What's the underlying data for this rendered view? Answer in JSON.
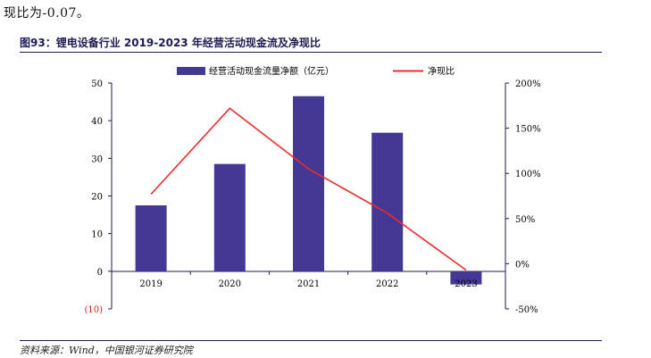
{
  "intro_text": "现比为-0.07。",
  "figure": {
    "title": "图93：锂电设备行业 2019-2023 年经营活动现金流及净现比",
    "source": "资料来源：Wind，中国银河证券研究院"
  },
  "colors": {
    "bar": "#433894",
    "line": "#ee2b2b",
    "axis": "#1c1c52",
    "title": "#1c1c52"
  },
  "chart_data": {
    "type": "bar",
    "categories": [
      "2019",
      "2020",
      "2021",
      "2022",
      "2023"
    ],
    "series": [
      {
        "name": "经营活动现金流量净额（亿元）",
        "type": "bar",
        "axis": "left",
        "values": [
          17.5,
          28.5,
          46.5,
          36.8,
          -3.5
        ]
      },
      {
        "name": "净现比",
        "type": "line",
        "axis": "right",
        "values": [
          0.77,
          1.72,
          1.05,
          0.56,
          -0.07
        ]
      }
    ],
    "y_left": {
      "min": -10,
      "max": 50,
      "ticks": [
        50,
        40,
        30,
        20,
        10,
        0,
        -10
      ],
      "tick_labels": [
        "50",
        "40",
        "30",
        "20",
        "10",
        "0",
        "(10)"
      ],
      "negative_label_color": "#d02020"
    },
    "y_right": {
      "min": -0.5,
      "max": 2.0,
      "ticks": [
        2.0,
        1.5,
        1.0,
        0.5,
        0,
        -0.5
      ],
      "tick_labels": [
        "200%",
        "150%",
        "100%",
        "50%",
        "0%",
        "-50%"
      ]
    },
    "legend_position": "top-center",
    "grid": false
  }
}
